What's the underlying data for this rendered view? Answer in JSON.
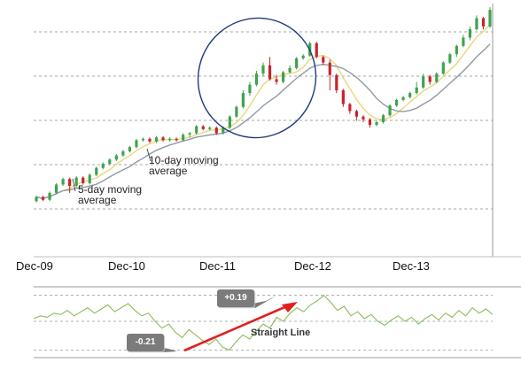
{
  "chart_data": [
    {
      "type": "candlestick",
      "x_tick_labels": [
        "Dec-09",
        "Dec-10",
        "Dec-11",
        "Dec-12",
        "Dec-13"
      ],
      "candles": [
        {
          "o": 5.3,
          "c": 5.45,
          "h": 5.5,
          "l": 5.25
        },
        {
          "o": 5.45,
          "c": 5.35,
          "h": 5.5,
          "l": 5.3
        },
        {
          "o": 5.35,
          "c": 5.6,
          "h": 5.65,
          "l": 5.3
        },
        {
          "o": 5.6,
          "c": 5.9,
          "h": 5.95,
          "l": 5.55
        },
        {
          "o": 5.9,
          "c": 6.1,
          "h": 6.15,
          "l": 5.85
        },
        {
          "o": 6.1,
          "c": 5.85,
          "h": 6.15,
          "l": 5.6
        },
        {
          "o": 5.85,
          "c": 6.15,
          "h": 6.2,
          "l": 5.8
        },
        {
          "o": 6.15,
          "c": 5.95,
          "h": 6.2,
          "l": 5.9
        },
        {
          "o": 5.95,
          "c": 6.25,
          "h": 6.3,
          "l": 5.9
        },
        {
          "o": 6.25,
          "c": 6.5,
          "h": 6.55,
          "l": 6.2
        },
        {
          "o": 6.5,
          "c": 6.65,
          "h": 6.7,
          "l": 6.45
        },
        {
          "o": 6.65,
          "c": 6.8,
          "h": 6.85,
          "l": 6.6
        },
        {
          "o": 6.8,
          "c": 6.95,
          "h": 7.0,
          "l": 6.75
        },
        {
          "o": 6.95,
          "c": 7.1,
          "h": 7.15,
          "l": 6.9
        },
        {
          "o": 7.1,
          "c": 7.25,
          "h": 7.3,
          "l": 7.05
        },
        {
          "o": 7.25,
          "c": 7.5,
          "h": 7.55,
          "l": 7.2
        },
        {
          "o": 7.5,
          "c": 7.55,
          "h": 7.6,
          "l": 7.45
        },
        {
          "o": 7.55,
          "c": 7.45,
          "h": 7.6,
          "l": 7.4
        },
        {
          "o": 7.45,
          "c": 7.6,
          "h": 7.65,
          "l": 7.4
        },
        {
          "o": 7.6,
          "c": 7.5,
          "h": 7.65,
          "l": 7.45
        },
        {
          "o": 7.5,
          "c": 7.55,
          "h": 7.6,
          "l": 7.45
        },
        {
          "o": 7.55,
          "c": 7.5,
          "h": 7.6,
          "l": 7.45
        },
        {
          "o": 7.5,
          "c": 7.7,
          "h": 7.75,
          "l": 7.45
        },
        {
          "o": 7.7,
          "c": 7.75,
          "h": 7.8,
          "l": 7.6
        },
        {
          "o": 7.75,
          "c": 8.0,
          "h": 8.05,
          "l": 7.7
        },
        {
          "o": 8.0,
          "c": 7.9,
          "h": 8.05,
          "l": 7.85
        },
        {
          "o": 7.9,
          "c": 7.95,
          "h": 8.0,
          "l": 7.85
        },
        {
          "o": 7.95,
          "c": 7.75,
          "h": 8.0,
          "l": 7.7
        },
        {
          "o": 7.75,
          "c": 7.95,
          "h": 8.0,
          "l": 7.7
        },
        {
          "o": 7.95,
          "c": 8.35,
          "h": 8.4,
          "l": 7.9
        },
        {
          "o": 8.35,
          "c": 8.7,
          "h": 8.75,
          "l": 8.3
        },
        {
          "o": 8.7,
          "c": 9.2,
          "h": 9.3,
          "l": 8.65
        },
        {
          "o": 9.2,
          "c": 9.5,
          "h": 9.6,
          "l": 9.1
        },
        {
          "o": 9.5,
          "c": 9.9,
          "h": 10.0,
          "l": 9.45
        },
        {
          "o": 9.9,
          "c": 10.2,
          "h": 10.3,
          "l": 9.8
        },
        {
          "o": 10.2,
          "c": 9.7,
          "h": 10.5,
          "l": 9.65
        },
        {
          "o": 9.7,
          "c": 9.6,
          "h": 9.85,
          "l": 9.5
        },
        {
          "o": 9.6,
          "c": 9.95,
          "h": 10.0,
          "l": 9.55
        },
        {
          "o": 9.95,
          "c": 10.1,
          "h": 10.2,
          "l": 9.9
        },
        {
          "o": 10.1,
          "c": 10.45,
          "h": 10.5,
          "l": 10.05
        },
        {
          "o": 10.45,
          "c": 10.55,
          "h": 10.6,
          "l": 10.4
        },
        {
          "o": 10.55,
          "c": 11.0,
          "h": 11.05,
          "l": 10.5
        },
        {
          "o": 11.0,
          "c": 10.5,
          "h": 11.05,
          "l": 10.45
        },
        {
          "o": 10.5,
          "c": 10.3,
          "h": 10.55,
          "l": 10.2
        },
        {
          "o": 10.3,
          "c": 9.85,
          "h": 10.4,
          "l": 9.3
        },
        {
          "o": 9.85,
          "c": 9.3,
          "h": 9.9,
          "l": 9.2
        },
        {
          "o": 9.3,
          "c": 8.8,
          "h": 9.35,
          "l": 8.7
        },
        {
          "o": 8.8,
          "c": 8.55,
          "h": 8.85,
          "l": 8.45
        },
        {
          "o": 8.55,
          "c": 8.35,
          "h": 8.6,
          "l": 8.2
        },
        {
          "o": 8.35,
          "c": 8.25,
          "h": 8.4,
          "l": 8.15
        },
        {
          "o": 8.25,
          "c": 8.05,
          "h": 8.3,
          "l": 7.95
        },
        {
          "o": 8.05,
          "c": 8.15,
          "h": 8.2,
          "l": 8.0
        },
        {
          "o": 8.15,
          "c": 8.4,
          "h": 8.45,
          "l": 8.1
        },
        {
          "o": 8.4,
          "c": 8.75,
          "h": 8.8,
          "l": 8.35
        },
        {
          "o": 8.75,
          "c": 8.95,
          "h": 9.0,
          "l": 8.7
        },
        {
          "o": 8.95,
          "c": 9.05,
          "h": 9.1,
          "l": 8.9
        },
        {
          "o": 9.05,
          "c": 9.2,
          "h": 9.25,
          "l": 9.0
        },
        {
          "o": 9.2,
          "c": 9.4,
          "h": 9.6,
          "l": 9.15
        },
        {
          "o": 9.4,
          "c": 9.8,
          "h": 9.9,
          "l": 9.35
        },
        {
          "o": 9.8,
          "c": 9.6,
          "h": 9.85,
          "l": 9.5
        },
        {
          "o": 9.6,
          "c": 9.9,
          "h": 9.95,
          "l": 9.55
        },
        {
          "o": 9.9,
          "c": 10.3,
          "h": 10.35,
          "l": 9.85
        },
        {
          "o": 10.3,
          "c": 10.6,
          "h": 10.65,
          "l": 10.25
        },
        {
          "o": 10.6,
          "c": 10.9,
          "h": 10.95,
          "l": 10.5
        },
        {
          "o": 10.9,
          "c": 11.2,
          "h": 11.3,
          "l": 10.85
        },
        {
          "o": 11.2,
          "c": 11.5,
          "h": 11.6,
          "l": 11.1
        },
        {
          "o": 11.5,
          "c": 11.9,
          "h": 12.0,
          "l": 11.45
        },
        {
          "o": 11.9,
          "c": 11.6,
          "h": 11.95,
          "l": 11.5
        },
        {
          "o": 11.6,
          "c": 12.2,
          "h": 12.3,
          "l": 11.55
        }
      ],
      "ylim": [
        4.0,
        12.3
      ],
      "grid": "dashed horizontal",
      "candle_colors": {
        "up": "#3fa34d",
        "down": "#c8242b"
      },
      "moving_averages": [
        {
          "name": "5-day moving average",
          "color": "#e8d87a",
          "window": 5
        },
        {
          "name": "10-day moving average",
          "color": "#8e9aa6",
          "window": 10
        }
      ],
      "annotations": [
        "5-day moving average",
        "10-day moving average"
      ],
      "highlight": "ellipse around Dec-11 peak",
      "highlight_color": "#1f3a7a"
    },
    {
      "type": "line",
      "values": [
        0.02,
        0.04,
        0.03,
        0.06,
        0.05,
        0.08,
        0.04,
        0.07,
        0.1,
        0.06,
        0.09,
        0.12,
        0.07,
        0.1,
        0.13,
        0.08,
        0.04,
        0.06,
        0.0,
        -0.05,
        -0.02,
        -0.08,
        -0.12,
        -0.06,
        -0.1,
        -0.14,
        -0.17,
        -0.13,
        -0.19,
        -0.21,
        -0.15,
        -0.1,
        -0.13,
        -0.07,
        -0.02,
        -0.05,
        0.03,
        0.0,
        0.06,
        0.1,
        0.07,
        0.12,
        0.15,
        0.19,
        0.14,
        0.08,
        0.11,
        0.04,
        0.07,
        0.02,
        0.05,
        0.0,
        -0.03,
        0.01,
        0.04,
        0.0,
        0.03,
        -0.02,
        0.02,
        0.05,
        0.01,
        0.06,
        0.03,
        0.08,
        0.04,
        0.1,
        0.06,
        0.09,
        0.05
      ],
      "ylim": [
        -0.24,
        0.24
      ],
      "line_color": "#8bbd5a",
      "reference_lines": [
        0.19,
        0.0,
        -0.21
      ],
      "annotations": [
        "-0.21",
        "+0.19",
        "Straight Line"
      ],
      "arrow_color": "#e02020"
    }
  ],
  "labels": {
    "ma5_line1": "5-day moving",
    "ma5_line2": "average",
    "ma10_line1": "10-day moving",
    "ma10_line2": "average",
    "callout_low": "-0.21",
    "callout_high": "+0.19",
    "straight_line": "Straight Line"
  }
}
